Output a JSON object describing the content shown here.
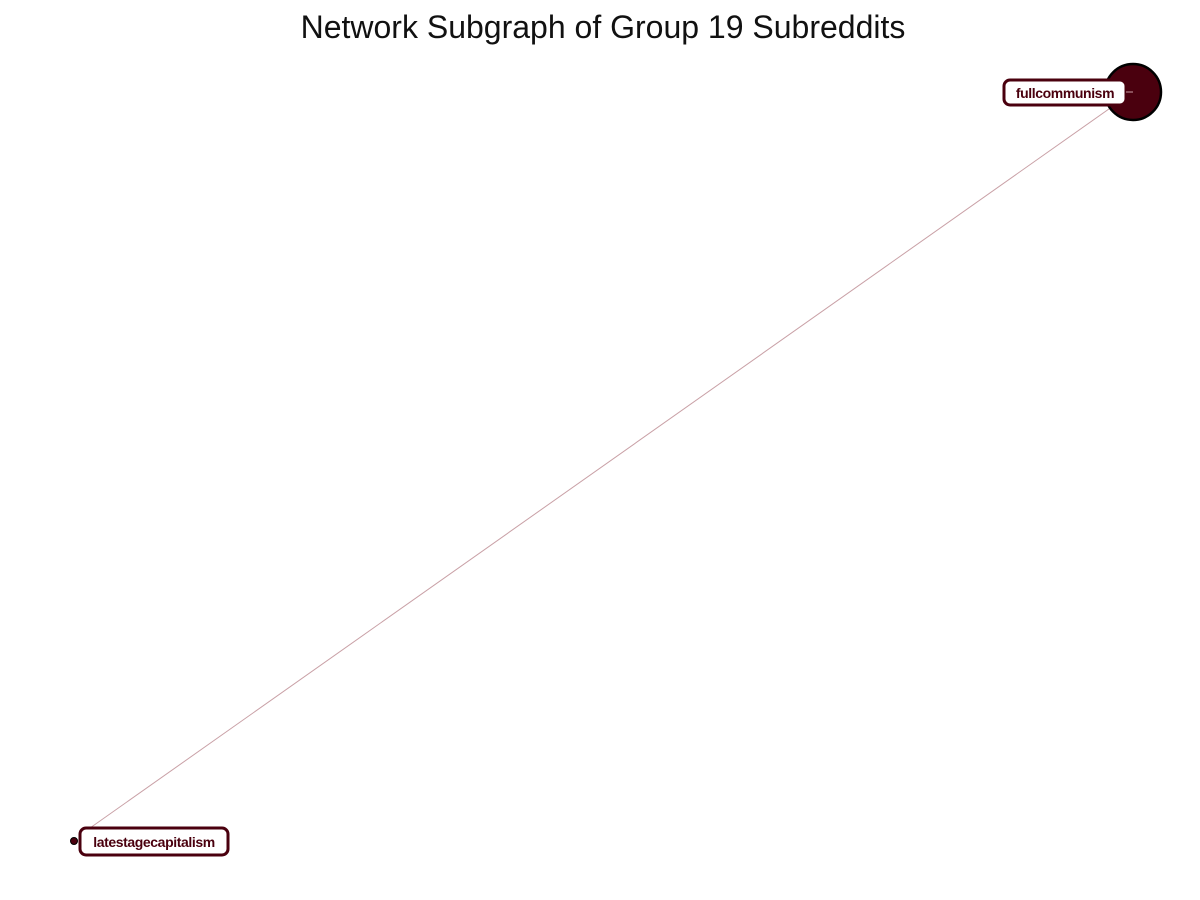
{
  "title": "Network Subgraph of Group 19 Subreddits",
  "colors": {
    "node_fill": "#4a000e",
    "node_stroke": "#000000",
    "edge": "#c9a0a6",
    "label_border": "#4a000e",
    "label_text": "#4a000e",
    "label_background": "#ffffff"
  },
  "nodes": [
    {
      "id": "fullcommunism",
      "label": "fullcommunism",
      "size": "large"
    },
    {
      "id": "latestagecapitalism",
      "label": "latestagecapitalism",
      "size": "small"
    }
  ],
  "edges": [
    {
      "source": "fullcommunism",
      "target": "latestagecapitalism"
    }
  ]
}
